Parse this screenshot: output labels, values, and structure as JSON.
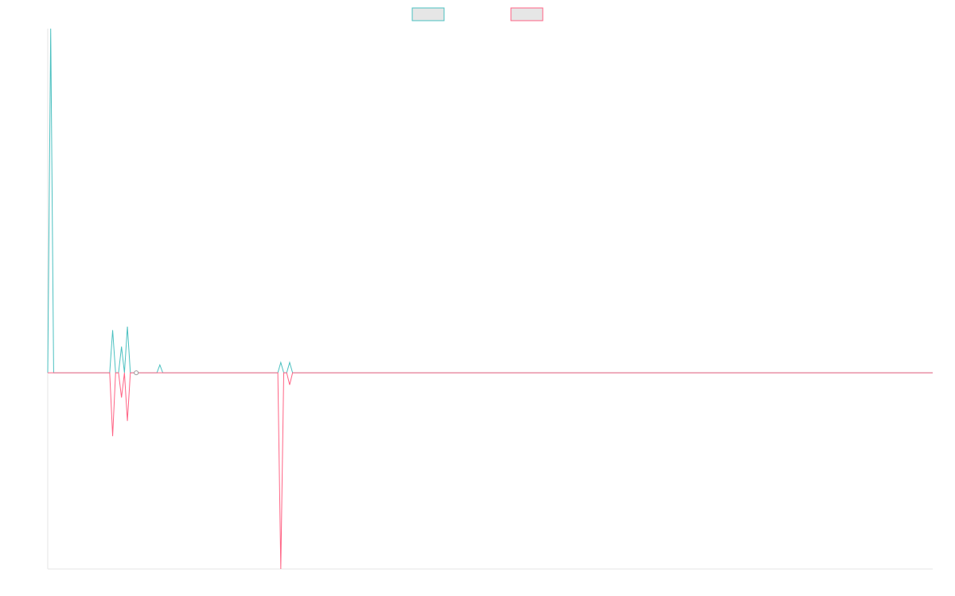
{
  "chart_data": {
    "type": "line",
    "grid": false,
    "legend_placement": "top-center",
    "x": [
      0,
      1,
      2,
      3,
      4,
      5,
      6,
      7,
      8,
      9,
      10,
      11,
      12,
      13,
      14,
      15,
      16,
      17,
      18,
      19,
      20,
      21,
      22,
      23,
      24,
      25,
      26,
      27,
      28,
      29,
      30,
      31,
      32,
      33,
      34,
      35,
      36,
      37,
      38,
      39,
      40,
      41,
      42,
      43,
      44,
      45,
      46,
      47,
      48,
      49,
      50,
      51,
      52,
      53,
      54,
      55,
      56,
      57,
      58,
      59,
      60,
      61,
      62,
      63,
      64,
      65,
      66,
      67,
      68,
      69,
      70,
      71,
      72,
      73,
      74,
      75,
      76,
      77,
      78,
      79,
      80,
      81,
      82,
      83,
      84,
      85,
      86,
      87,
      88,
      89,
      90,
      91,
      92,
      93,
      94,
      95,
      96,
      97,
      98,
      99,
      100,
      101,
      102,
      103,
      104,
      105,
      106,
      107,
      108,
      109,
      110,
      111,
      112,
      113,
      114,
      115,
      116,
      117,
      118,
      119,
      120,
      121,
      122,
      123,
      124,
      125,
      126,
      127,
      128,
      129,
      130,
      131,
      132,
      133,
      134,
      135,
      136,
      137,
      138,
      139,
      140,
      141,
      142,
      143,
      144,
      145,
      146,
      147,
      148,
      149,
      150,
      151,
      152,
      153,
      154,
      155,
      156,
      157,
      158,
      159,
      160,
      161,
      162,
      163,
      164,
      165,
      166,
      167,
      168,
      169,
      170,
      171,
      172,
      173,
      174,
      175,
      176,
      177,
      178,
      179,
      180,
      181,
      182,
      183,
      184,
      185,
      186,
      187,
      188,
      189,
      190,
      191,
      192,
      193,
      194,
      195,
      196,
      197,
      198,
      199,
      200,
      201,
      202,
      203,
      204,
      205,
      206,
      207,
      208,
      209,
      210,
      211,
      212,
      213,
      214,
      215,
      216,
      217,
      218,
      219,
      220,
      221,
      222,
      223,
      224,
      225,
      226,
      227,
      228,
      229,
      230,
      231,
      232,
      233,
      234,
      235,
      236,
      237,
      238,
      239,
      240,
      241,
      242,
      243,
      244,
      245,
      246,
      247,
      248,
      249,
      250,
      251,
      252,
      253,
      254,
      255,
      256,
      257,
      258,
      259,
      260,
      261,
      262,
      263,
      264,
      265,
      266,
      267,
      268,
      269,
      270,
      271,
      272,
      273,
      274,
      275,
      276,
      277,
      278,
      279,
      280,
      281,
      282,
      283,
      284,
      285,
      286,
      287,
      288,
      289,
      290,
      291,
      292,
      293,
      294,
      295,
      296,
      297,
      298,
      299,
      300
    ],
    "ylim": [
      -0.57,
      1.0
    ],
    "series": [
      {
        "name": "",
        "color": "#4bc0c0",
        "points": [
          [
            0,
            0
          ],
          [
            1,
            1.0
          ],
          [
            2,
            0
          ],
          [
            21,
            0
          ],
          [
            22,
            0.124
          ],
          [
            23,
            0
          ],
          [
            24,
            0
          ],
          [
            25,
            0.076
          ],
          [
            26,
            0
          ],
          [
            27,
            0.134
          ],
          [
            28,
            0
          ],
          [
            29,
            0
          ],
          [
            30,
            0
          ],
          [
            37,
            0
          ],
          [
            38,
            0.023
          ],
          [
            39,
            0
          ],
          [
            78,
            0
          ],
          [
            79,
            0.03
          ],
          [
            80,
            0
          ],
          [
            81,
            0
          ],
          [
            82,
            0.03
          ],
          [
            83,
            0
          ],
          [
            300,
            0
          ]
        ]
      },
      {
        "name": "",
        "color": "#ff6384",
        "points": [
          [
            0,
            0
          ],
          [
            1,
            0
          ],
          [
            21,
            0
          ],
          [
            22,
            -0.184
          ],
          [
            23,
            0
          ],
          [
            24,
            0
          ],
          [
            25,
            -0.072
          ],
          [
            26,
            0
          ],
          [
            27,
            -0.14
          ],
          [
            28,
            0
          ],
          [
            29,
            0
          ],
          [
            30,
            0
          ],
          [
            78,
            0
          ],
          [
            79,
            -0.57
          ],
          [
            80,
            0
          ],
          [
            81,
            0
          ],
          [
            82,
            -0.035
          ],
          [
            83,
            0
          ],
          [
            300,
            0
          ]
        ]
      }
    ]
  }
}
